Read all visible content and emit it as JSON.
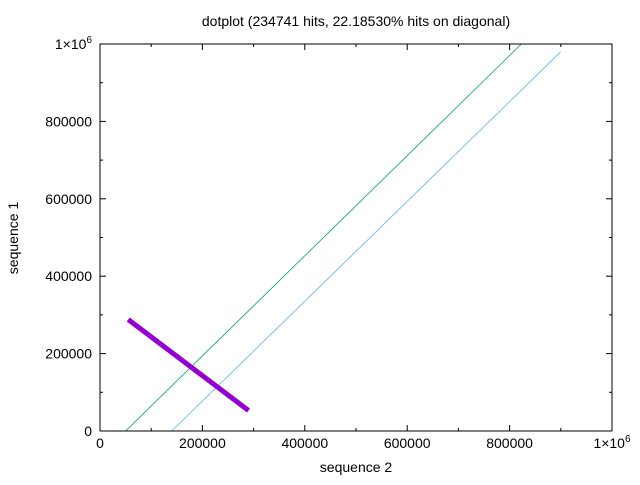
{
  "chart_data": {
    "type": "line",
    "title": "dotplot (234741 hits, 22.18530% hits on diagonal)",
    "xlabel": "sequence 2",
    "ylabel": "sequence 1",
    "xlim": [
      0,
      1000000
    ],
    "ylim": [
      0,
      1000000
    ],
    "x_ticks": [
      {
        "value": 0,
        "label": "0"
      },
      {
        "value": 200000,
        "label": "200000"
      },
      {
        "value": 400000,
        "label": "400000"
      },
      {
        "value": 600000,
        "label": "600000"
      },
      {
        "value": 800000,
        "label": "800000"
      },
      {
        "value": 1000000,
        "label": "1×10",
        "sup": "6"
      }
    ],
    "y_ticks": [
      {
        "value": 0,
        "label": "0"
      },
      {
        "value": 200000,
        "label": "200000"
      },
      {
        "value": 400000,
        "label": "400000"
      },
      {
        "value": 600000,
        "label": "600000"
      },
      {
        "value": 800000,
        "label": "800000"
      },
      {
        "value": 1000000,
        "label": "1×10",
        "sup": "6"
      }
    ],
    "grid": false,
    "series": [
      {
        "color": "#009e73",
        "style": "thin",
        "x": [
          50000,
          823000
        ],
        "y": [
          0,
          1000000
        ]
      },
      {
        "color": "#56b4e9",
        "style": "thin",
        "x": [
          140000,
          900000
        ],
        "y": [
          0,
          980000
        ]
      },
      {
        "color": "#9400d3",
        "style": "thick",
        "x": [
          55000,
          290000
        ],
        "y": [
          288000,
          53000
        ]
      }
    ]
  }
}
